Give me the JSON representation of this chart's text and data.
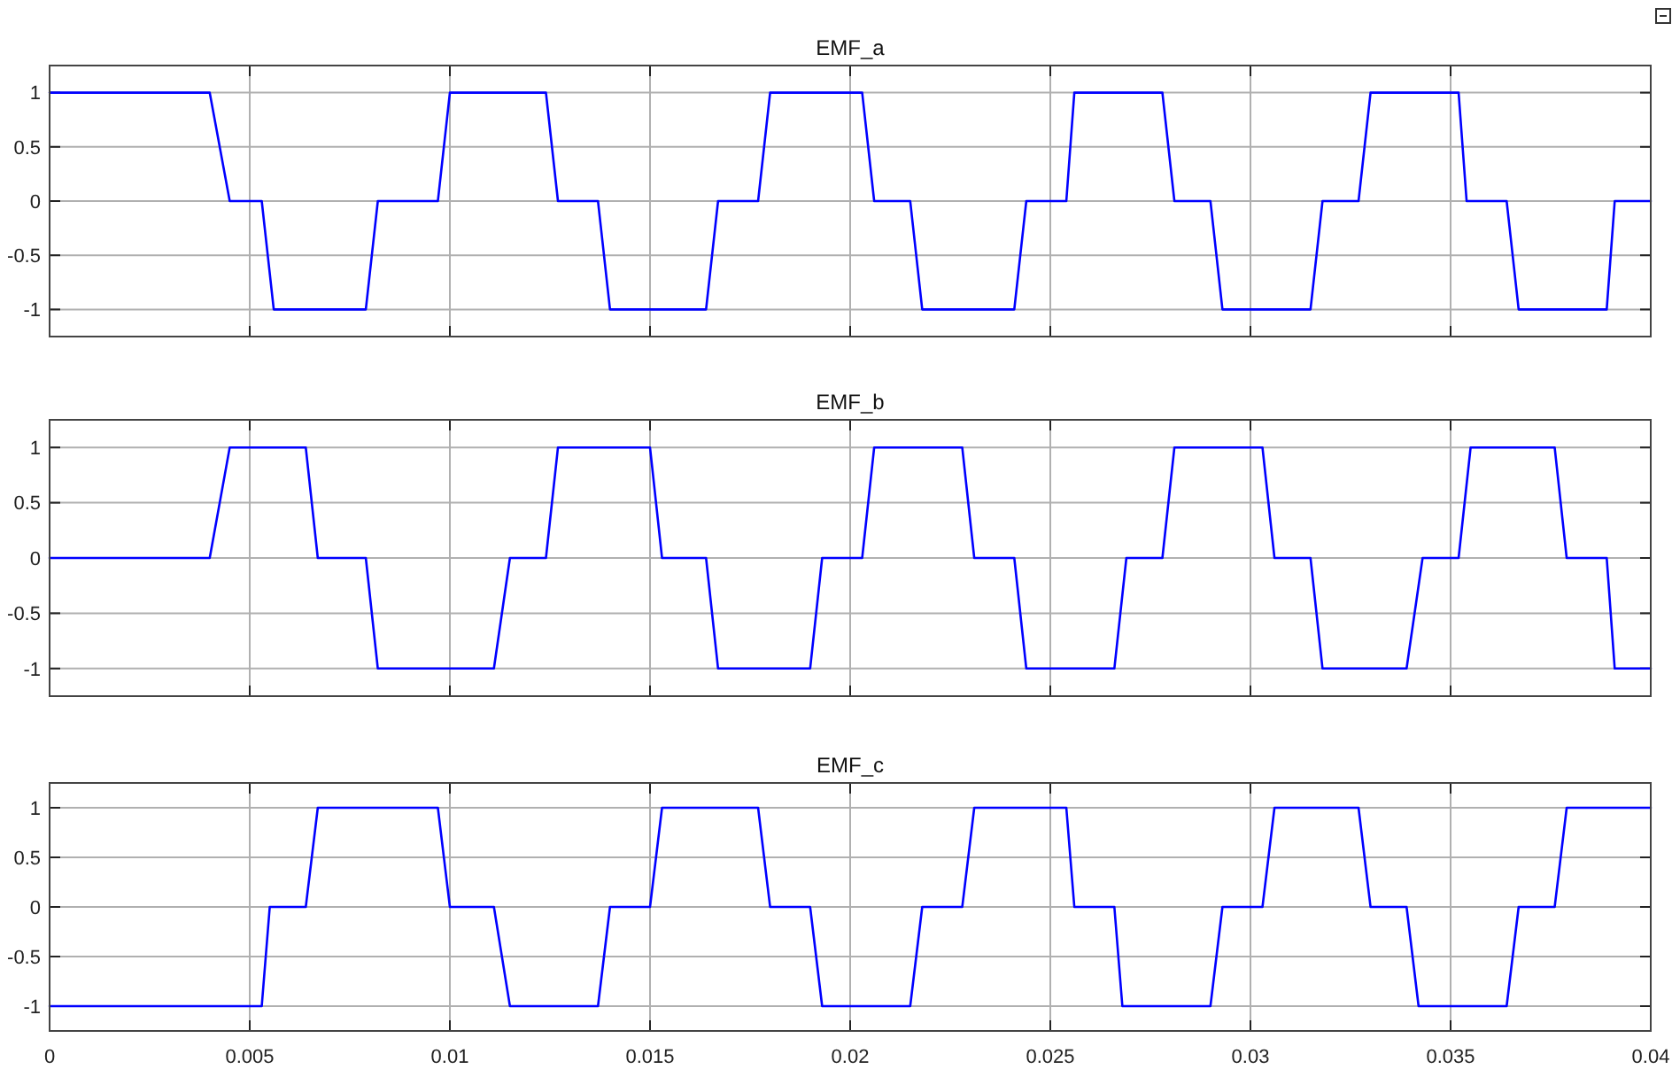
{
  "chart_data": [
    {
      "type": "line",
      "title": "EMF_a",
      "color": "#0000ff",
      "xlim": [
        0,
        0.04
      ],
      "ylim": [
        -1.25,
        1.25
      ],
      "xticks": [
        0,
        0.005,
        0.01,
        0.015,
        0.02,
        0.025,
        0.03,
        0.035,
        0.04
      ],
      "yticks": [
        -1,
        -0.5,
        0,
        0.5,
        1
      ],
      "grid": true,
      "tick_labels": "y",
      "x": [
        0,
        0.004,
        0.0045,
        0.0053,
        0.0056,
        0.0079,
        0.0082,
        0.0097,
        0.01,
        0.0124,
        0.0127,
        0.0137,
        0.014,
        0.0164,
        0.0167,
        0.0177,
        0.018,
        0.0203,
        0.0206,
        0.0215,
        0.0218,
        0.0241,
        0.0244,
        0.0254,
        0.0256,
        0.0278,
        0.0281,
        0.029,
        0.0293,
        0.0315,
        0.0318,
        0.0327,
        0.033,
        0.0352,
        0.0354,
        0.0364,
        0.0367,
        0.0389,
        0.0391,
        0.04
      ],
      "values": [
        1,
        1,
        0,
        0,
        -1,
        -1,
        0,
        0,
        1,
        1,
        0,
        0,
        -1,
        -1,
        0,
        0,
        1,
        1,
        0,
        0,
        -1,
        -1,
        0,
        0,
        1,
        1,
        0,
        0,
        -1,
        -1,
        0,
        0,
        1,
        1,
        0,
        0,
        -1,
        -1,
        0,
        0
      ]
    },
    {
      "type": "line",
      "title": "EMF_b",
      "color": "#0000ff",
      "xlim": [
        0,
        0.04
      ],
      "ylim": [
        -1.25,
        1.25
      ],
      "xticks": [
        0,
        0.005,
        0.01,
        0.015,
        0.02,
        0.025,
        0.03,
        0.035,
        0.04
      ],
      "yticks": [
        -1,
        -0.5,
        0,
        0.5,
        1
      ],
      "grid": true,
      "tick_labels": "y",
      "x": [
        0,
        0.004,
        0.0045,
        0.0064,
        0.0067,
        0.0079,
        0.0082,
        0.0111,
        0.0115,
        0.0124,
        0.0127,
        0.015,
        0.0153,
        0.0164,
        0.0167,
        0.019,
        0.0193,
        0.0203,
        0.0206,
        0.0228,
        0.0231,
        0.0241,
        0.0244,
        0.0266,
        0.0269,
        0.0278,
        0.0281,
        0.0303,
        0.0306,
        0.0315,
        0.0318,
        0.0339,
        0.0343,
        0.0352,
        0.0355,
        0.0376,
        0.0379,
        0.0389,
        0.0391,
        0.04
      ],
      "values": [
        0,
        0,
        1,
        1,
        0,
        0,
        -1,
        -1,
        0,
        0,
        1,
        1,
        0,
        0,
        -1,
        -1,
        0,
        0,
        1,
        1,
        0,
        0,
        -1,
        -1,
        0,
        0,
        1,
        1,
        0,
        0,
        -1,
        -1,
        0,
        0,
        1,
        1,
        0,
        0,
        -1,
        -1
      ]
    },
    {
      "type": "line",
      "title": "EMF_c",
      "color": "#0000ff",
      "xlim": [
        0,
        0.04
      ],
      "ylim": [
        -1.25,
        1.25
      ],
      "xticks": [
        0,
        0.005,
        0.01,
        0.015,
        0.02,
        0.025,
        0.03,
        0.035,
        0.04
      ],
      "yticks": [
        -1,
        -0.5,
        0,
        0.5,
        1
      ],
      "grid": true,
      "x": [
        0,
        0.0053,
        0.0055,
        0.0064,
        0.0067,
        0.0097,
        0.01,
        0.0111,
        0.0115,
        0.0137,
        0.014,
        0.015,
        0.0153,
        0.0177,
        0.018,
        0.019,
        0.0193,
        0.0215,
        0.0218,
        0.0228,
        0.0231,
        0.0254,
        0.0256,
        0.0266,
        0.0268,
        0.029,
        0.0293,
        0.0303,
        0.0306,
        0.0327,
        0.033,
        0.0339,
        0.0342,
        0.0364,
        0.0367,
        0.0376,
        0.0379,
        0.04
      ],
      "values": [
        -1,
        -1,
        0,
        0,
        1,
        1,
        0,
        0,
        -1,
        -1,
        0,
        0,
        1,
        1,
        0,
        0,
        -1,
        -1,
        0,
        0,
        1,
        1,
        0,
        0,
        -1,
        -1,
        0,
        0,
        1,
        1,
        0,
        0,
        -1,
        -1,
        0,
        0,
        1,
        1
      ]
    }
  ]
}
